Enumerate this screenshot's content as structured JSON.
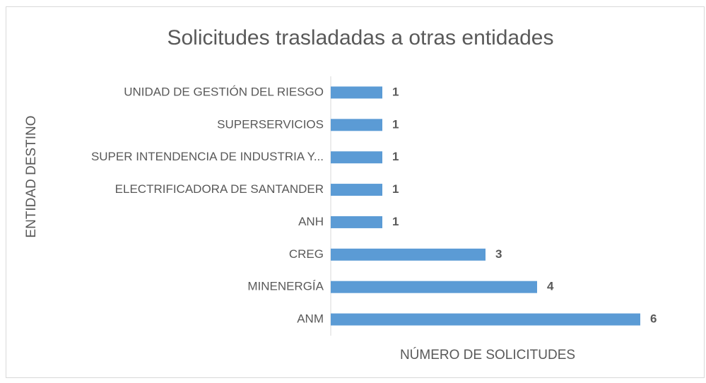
{
  "chart_data": {
    "type": "bar",
    "orientation": "horizontal",
    "title": "Solicitudes trasladadas a otras entidades",
    "x_label": "NÚMERO DE SOLICITUDES",
    "y_label": "ENTIDAD DESTINO",
    "categories": [
      "UNIDAD DE GESTIÓN DEL RIESGO",
      "SUPERSERVICIOS",
      "SUPER INTENDENCIA DE INDUSTRIA Y...",
      "ELECTRIFICADORA DE SANTANDER",
      "ANH",
      "CREG",
      "MINENERGÍA",
      "ANM"
    ],
    "values": [
      1,
      1,
      1,
      1,
      1,
      3,
      4,
      6
    ],
    "color": "#5b9bd5"
  }
}
